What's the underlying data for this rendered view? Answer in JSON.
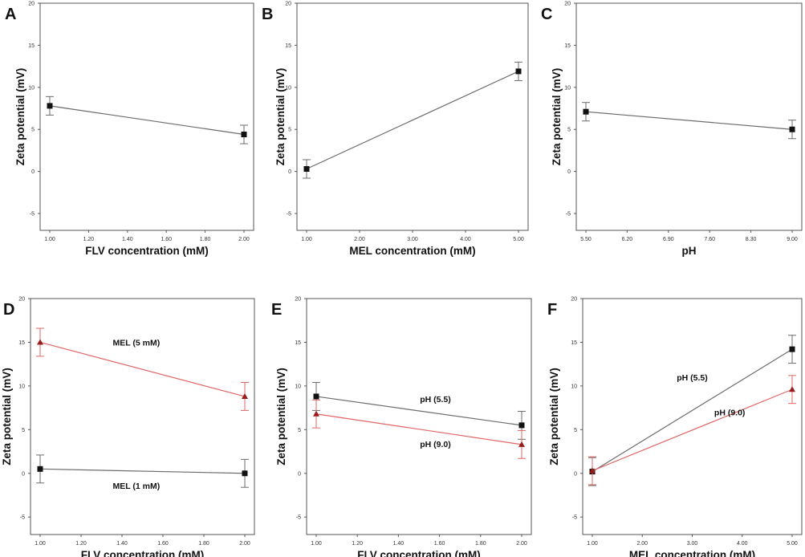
{
  "chart_data": [
    {
      "panel": "A",
      "type": "line",
      "xlabel": "FLV concentration (mM)",
      "ylabel": "Zeta potential (mV)",
      "xlim": [
        1.0,
        2.0
      ],
      "ylim": [
        -7,
        20
      ],
      "xticks": [
        "1.00",
        "1.20",
        "1.40",
        "1.60",
        "1.80",
        "2.00"
      ],
      "xtick_values": [
        1.0,
        1.2,
        1.4,
        1.6,
        1.8,
        2.0
      ],
      "yticks": [
        "-5",
        "0",
        "5",
        "10",
        "15",
        "20"
      ],
      "ytick_values": [
        -5,
        0,
        5,
        10,
        15,
        20
      ],
      "series": [
        {
          "name": "",
          "color": "#6b6b6b",
          "marker": "square",
          "x": [
            1.0,
            2.0
          ],
          "y": [
            7.8,
            4.4
          ],
          "err": [
            1.1,
            1.1
          ]
        }
      ],
      "annotations": []
    },
    {
      "panel": "B",
      "type": "line",
      "xlabel": "MEL concentration (mM)",
      "ylabel": "Zeta potential (mV)",
      "xlim": [
        1.0,
        5.0
      ],
      "ylim": [
        -7,
        20
      ],
      "xticks": [
        "1.00",
        "2.00",
        "3.00",
        "4.00",
        "5.00"
      ],
      "xtick_values": [
        1.0,
        2.0,
        3.0,
        4.0,
        5.0
      ],
      "yticks": [
        "-5",
        "0",
        "5",
        "10",
        "15",
        "20"
      ],
      "ytick_values": [
        -5,
        0,
        5,
        10,
        15,
        20
      ],
      "series": [
        {
          "name": "",
          "color": "#6b6b6b",
          "marker": "square",
          "x": [
            1.0,
            5.0
          ],
          "y": [
            0.3,
            11.9
          ],
          "err": [
            1.1,
            1.1
          ]
        }
      ],
      "annotations": []
    },
    {
      "panel": "C",
      "type": "line",
      "xlabel": "pH",
      "ylabel": "Zeta potential (mV)",
      "xlim": [
        5.5,
        9.0
      ],
      "ylim": [
        -7,
        20
      ],
      "xticks": [
        "5.50",
        "6.20",
        "6.90",
        "7.60",
        "8.30",
        "9.00"
      ],
      "xtick_values": [
        5.5,
        6.2,
        6.9,
        7.6,
        8.3,
        9.0
      ],
      "yticks": [
        "-5",
        "0",
        "5",
        "10",
        "15",
        "20"
      ],
      "ytick_values": [
        -5,
        0,
        5,
        10,
        15,
        20
      ],
      "series": [
        {
          "name": "",
          "color": "#6b6b6b",
          "marker": "square",
          "x": [
            5.5,
            9.0
          ],
          "y": [
            7.1,
            5.0
          ],
          "err": [
            1.1,
            1.1
          ]
        }
      ],
      "annotations": []
    },
    {
      "panel": "D",
      "type": "line",
      "xlabel": "FLV concentration (mM)",
      "ylabel": "Zeta potential (mV)",
      "xlim": [
        1.0,
        2.0
      ],
      "ylim": [
        -7,
        20
      ],
      "xticks": [
        "1.00",
        "1.20",
        "1.40",
        "1.60",
        "1.80",
        "2.00"
      ],
      "xtick_values": [
        1.0,
        1.2,
        1.4,
        1.6,
        1.8,
        2.0
      ],
      "yticks": [
        "-5",
        "0",
        "5",
        "10",
        "15",
        "20"
      ],
      "ytick_values": [
        -5,
        0,
        5,
        10,
        15,
        20
      ],
      "series": [
        {
          "name": "MEL (5 mM)",
          "color": "#e06666",
          "marker": "triangle",
          "x": [
            1.0,
            2.0
          ],
          "y": [
            15.0,
            8.8
          ],
          "err": [
            1.6,
            1.6
          ]
        },
        {
          "name": "MEL (1 mM)",
          "color": "#6b6b6b",
          "marker": "square",
          "x": [
            1.0,
            2.0
          ],
          "y": [
            0.5,
            0.0
          ],
          "err": [
            1.6,
            1.6
          ]
        }
      ],
      "annotations": [
        {
          "text": "MEL (5 mM)",
          "x": 1.47,
          "y": 15.0
        },
        {
          "text": "MEL (1 mM)",
          "x": 1.47,
          "y": -1.4
        }
      ]
    },
    {
      "panel": "E",
      "type": "line",
      "xlabel": "FLV concentration (mM)",
      "ylabel": "Zeta potential (mV)",
      "xlim": [
        1.0,
        2.0
      ],
      "ylim": [
        -7,
        20
      ],
      "xticks": [
        "1.00",
        "1.20",
        "1.40",
        "1.60",
        "1.80",
        "2.00"
      ],
      "xtick_values": [
        1.0,
        1.2,
        1.4,
        1.6,
        1.8,
        2.0
      ],
      "yticks": [
        "-5",
        "0",
        "5",
        "10",
        "15",
        "20"
      ],
      "ytick_values": [
        -5,
        0,
        5,
        10,
        15,
        20
      ],
      "series": [
        {
          "name": "pH (5.5)",
          "color": "#6b6b6b",
          "marker": "square",
          "x": [
            1.0,
            2.0
          ],
          "y": [
            8.8,
            5.5
          ],
          "err": [
            1.6,
            1.6
          ]
        },
        {
          "name": "pH (9.0)",
          "color": "#e06666",
          "marker": "triangle",
          "x": [
            1.0,
            2.0
          ],
          "y": [
            6.8,
            3.3
          ],
          "err": [
            1.6,
            1.6
          ]
        }
      ],
      "annotations": [
        {
          "text": "pH (5.5)",
          "x": 1.58,
          "y": 8.5
        },
        {
          "text": "pH (9.0)",
          "x": 1.58,
          "y": 3.4
        }
      ]
    },
    {
      "panel": "F",
      "type": "line",
      "xlabel": "MEL concentration (mM)",
      "ylabel": "Zeta potential (mV)",
      "xlim": [
        1.0,
        5.0
      ],
      "ylim": [
        -7,
        20
      ],
      "xticks": [
        "1.00",
        "2.00",
        "3.00",
        "4.00",
        "5.00"
      ],
      "xtick_values": [
        1.0,
        2.0,
        3.0,
        4.0,
        5.0
      ],
      "yticks": [
        "-5",
        "0",
        "5",
        "10",
        "15",
        "20"
      ],
      "ytick_values": [
        -5,
        0,
        5,
        10,
        15,
        20
      ],
      "series": [
        {
          "name": "pH (5.5)",
          "color": "#6b6b6b",
          "marker": "square",
          "x": [
            1.0,
            5.0
          ],
          "y": [
            0.2,
            14.2
          ],
          "err": [
            1.6,
            1.6
          ]
        },
        {
          "name": "pH (9.0)",
          "color": "#e06666",
          "marker": "triangle",
          "x": [
            1.0,
            5.0
          ],
          "y": [
            0.3,
            9.6
          ],
          "err": [
            1.6,
            1.6
          ]
        }
      ],
      "annotations": [
        {
          "text": "pH (5.5)",
          "x": 3.0,
          "y": 11.0
        },
        {
          "text": "pH (9.0)",
          "x": 3.75,
          "y": 7.0
        }
      ]
    }
  ]
}
